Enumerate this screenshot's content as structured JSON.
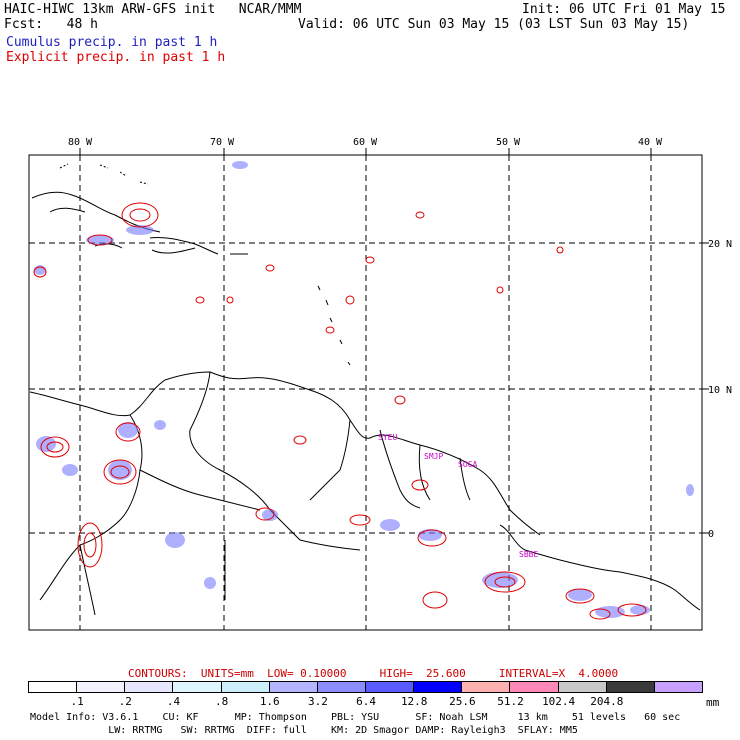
{
  "header": {
    "title_left": "HAIC-HIWC 13km ARW-GFS init   NCAR/MMM",
    "init": "Init: 06 UTC Fri 01 May 15",
    "fcst": "Fcst:   48 h",
    "valid": "Valid: 06 UTC Sun 03 May 15 (03 LST Sun 03 May 15)",
    "cumulus_label": "Cumulus precip. in past 1 h",
    "explicit_label": "Explicit precip. in past 1 h"
  },
  "colors": {
    "cumulus": "#1f1fbf",
    "explicit": "#dd0000",
    "station": "#cc00cc",
    "contour_info": "#cc0000"
  },
  "map": {
    "lon_labels": [
      "80 W",
      "70 W",
      "60 W",
      "50 W",
      "40 W"
    ],
    "lat_labels": [
      "20 N",
      "10 N",
      "0"
    ],
    "stations": [
      "SYEU",
      "SMJP",
      "SOCA",
      "SBBE"
    ]
  },
  "contours": {
    "header": "CONTOURS:  UNITS=mm  LOW= 0.10000     HIGH=  25.600     INTERVAL=X  4.0000"
  },
  "colorbar": {
    "colors": [
      "#ffffff",
      "#f2f2ff",
      "#e6e6ff",
      "#dff6ff",
      "#cdeefb",
      "#b4b4ff",
      "#8c8cff",
      "#5a5aff",
      "#0000ff",
      "#ffb0b0",
      "#ff88b8",
      "#c8c8c8",
      "#3a3a3a",
      "#c8a0ff"
    ],
    "ticks": [
      ".1",
      ".2",
      ".4",
      ".8",
      "1.6",
      "3.2",
      "6.4",
      "12.8",
      "25.6",
      "51.2",
      "102.4",
      "204.8"
    ],
    "unit": "mm"
  },
  "footer": {
    "line1": "Model Info: V3.6.1    CU: KF      MP: Thompson    PBL: YSU      SF: Noah LSM     13 km    51 levels   60 sec",
    "line2": "             LW: RRTMG   SW: RRTMG  DIFF: full    KM: 2D Smagor DAMP: Rayleigh3  SFLAY: MM5"
  }
}
